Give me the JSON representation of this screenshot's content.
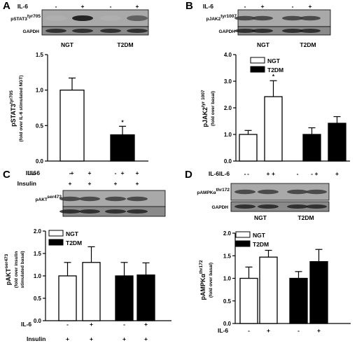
{
  "chart_data": [
    {
      "panel": "A",
      "type": "bar",
      "blot": {
        "treatment_row": {
          "label": "IL-6",
          "marks": [
            "-",
            "+",
            "-",
            "+"
          ]
        },
        "bands": [
          "pSTAT3",
          "GAPDH"
        ],
        "band_label_sup": "tyr705",
        "groups": [
          "NGT",
          "T2DM"
        ]
      },
      "ylabel": "pSTAT3",
      "ylabel_sup": "tyr705",
      "ylabel_line2": "(fold over IL-6 stimulated NGT)",
      "ylim": [
        0,
        1.5
      ],
      "yticks": [
        "0.0",
        "0.5",
        "1.0",
        "1.5"
      ],
      "bars": [
        {
          "group": "NGT",
          "value": 1.0,
          "error": 0.17,
          "fill": "#ffffff"
        },
        {
          "group": "T2DM",
          "value": 0.37,
          "error": 0.12,
          "fill": "#000000",
          "annotation": "*"
        }
      ],
      "condition_rows": [
        {
          "label": "IL-6",
          "marks": [
            "+",
            "+"
          ]
        }
      ]
    },
    {
      "panel": "B",
      "type": "bar",
      "blot": {
        "treatment_row": {
          "label": "IL-6",
          "marks": [
            "-",
            "+",
            "-",
            "+"
          ]
        },
        "bands": [
          "pJAK2",
          "GAPDH"
        ],
        "band_label_sup": "tyr1007",
        "groups": [
          "NGT",
          "T2DM"
        ]
      },
      "ylabel": "pJAK2",
      "ylabel_sup": "tyr 1007",
      "ylabel_line2": "(fold over basal)",
      "ylim": [
        0,
        4.0
      ],
      "yticks": [
        "0.0",
        "1.0",
        "2.0",
        "3.0",
        "4.0"
      ],
      "legend": [
        {
          "name": "NGT",
          "fill": "#ffffff"
        },
        {
          "name": "T2DM",
          "fill": "#000000"
        }
      ],
      "bars": [
        {
          "group": "NGT",
          "il6": "-",
          "value": 1.0,
          "error": 0.15,
          "fill": "#ffffff"
        },
        {
          "group": "NGT",
          "il6": "+",
          "value": 2.42,
          "error": 0.6,
          "fill": "#ffffff",
          "annotation": "*"
        },
        {
          "group": "T2DM",
          "il6": "-",
          "value": 1.0,
          "error": 0.25,
          "fill": "#000000"
        },
        {
          "group": "T2DM",
          "il6": "+",
          "value": 1.42,
          "error": 0.25,
          "fill": "#000000"
        }
      ],
      "condition_rows": [
        {
          "label": "IL-6",
          "marks": [
            "-",
            "+",
            "-",
            "+"
          ]
        }
      ]
    },
    {
      "panel": "C",
      "type": "bar",
      "blot": {
        "treatment_rows": [
          {
            "label": "IL-6",
            "marks": [
              "-",
              "+",
              "-",
              "+"
            ]
          },
          {
            "label": "Insulin",
            "marks": [
              "+",
              "+",
              "+",
              "+"
            ]
          }
        ],
        "bands": [
          "pAKT",
          ""
        ],
        "band_label_sup": "ser473",
        "groups": []
      },
      "ylabel": "pAKT",
      "ylabel_sup": "ser473",
      "ylabel_line2": "(fold over insulin",
      "ylabel_line3": "stimulated basal)",
      "ylim": [
        0,
        2.0
      ],
      "yticks": [
        "0.0",
        "0.5",
        "1.0",
        "1.5",
        "2.0"
      ],
      "legend": [
        {
          "name": "NGT",
          "fill": "#ffffff"
        },
        {
          "name": "T2DM",
          "fill": "#000000"
        }
      ],
      "bars": [
        {
          "group": "NGT",
          "il6": "-",
          "value": 1.0,
          "error": 0.3,
          "fill": "#ffffff"
        },
        {
          "group": "NGT",
          "il6": "+",
          "value": 1.3,
          "error": 0.35,
          "fill": "#ffffff"
        },
        {
          "group": "T2DM",
          "il6": "-",
          "value": 1.0,
          "error": 0.3,
          "fill": "#000000"
        },
        {
          "group": "T2DM",
          "il6": "+",
          "value": 1.02,
          "error": 0.27,
          "fill": "#000000"
        }
      ],
      "condition_rows": [
        {
          "label": "IL-6",
          "marks": [
            "-",
            "+",
            "-",
            "+"
          ]
        },
        {
          "label": "Insulin",
          "marks": [
            "+",
            "+",
            "+",
            "+"
          ]
        }
      ]
    },
    {
      "panel": "D",
      "type": "bar",
      "blot": {
        "treatment_row": {
          "label": "IL-6",
          "marks": [
            "-",
            "+",
            "-",
            "+"
          ]
        },
        "bands": [
          "pAMPKα",
          "GAPDH"
        ],
        "band_label_sup": "thr172",
        "groups": [
          "NGT",
          "T2DM"
        ]
      },
      "ylabel": "pAMPKα",
      "ylabel_sup": "thr172",
      "ylabel_line2": "(fold over basal)",
      "ylim": [
        0,
        2.0
      ],
      "yticks": [
        "0.0",
        "0.5",
        "1.0",
        "1.5",
        "2.0"
      ],
      "legend": [
        {
          "name": "NGT",
          "fill": "#ffffff"
        },
        {
          "name": "T2DM",
          "fill": "#000000"
        }
      ],
      "bars": [
        {
          "group": "NGT",
          "il6": "-",
          "value": 1.0,
          "error": 0.25,
          "fill": "#ffffff"
        },
        {
          "group": "NGT",
          "il6": "+",
          "value": 1.47,
          "error": 0.15,
          "fill": "#ffffff"
        },
        {
          "group": "T2DM",
          "il6": "-",
          "value": 1.0,
          "error": 0.15,
          "fill": "#000000"
        },
        {
          "group": "T2DM",
          "il6": "+",
          "value": 1.37,
          "error": 0.27,
          "fill": "#000000"
        }
      ],
      "condition_rows": [
        {
          "label": "IL-6",
          "marks": [
            "-",
            "+",
            "-",
            "+"
          ]
        }
      ]
    }
  ]
}
